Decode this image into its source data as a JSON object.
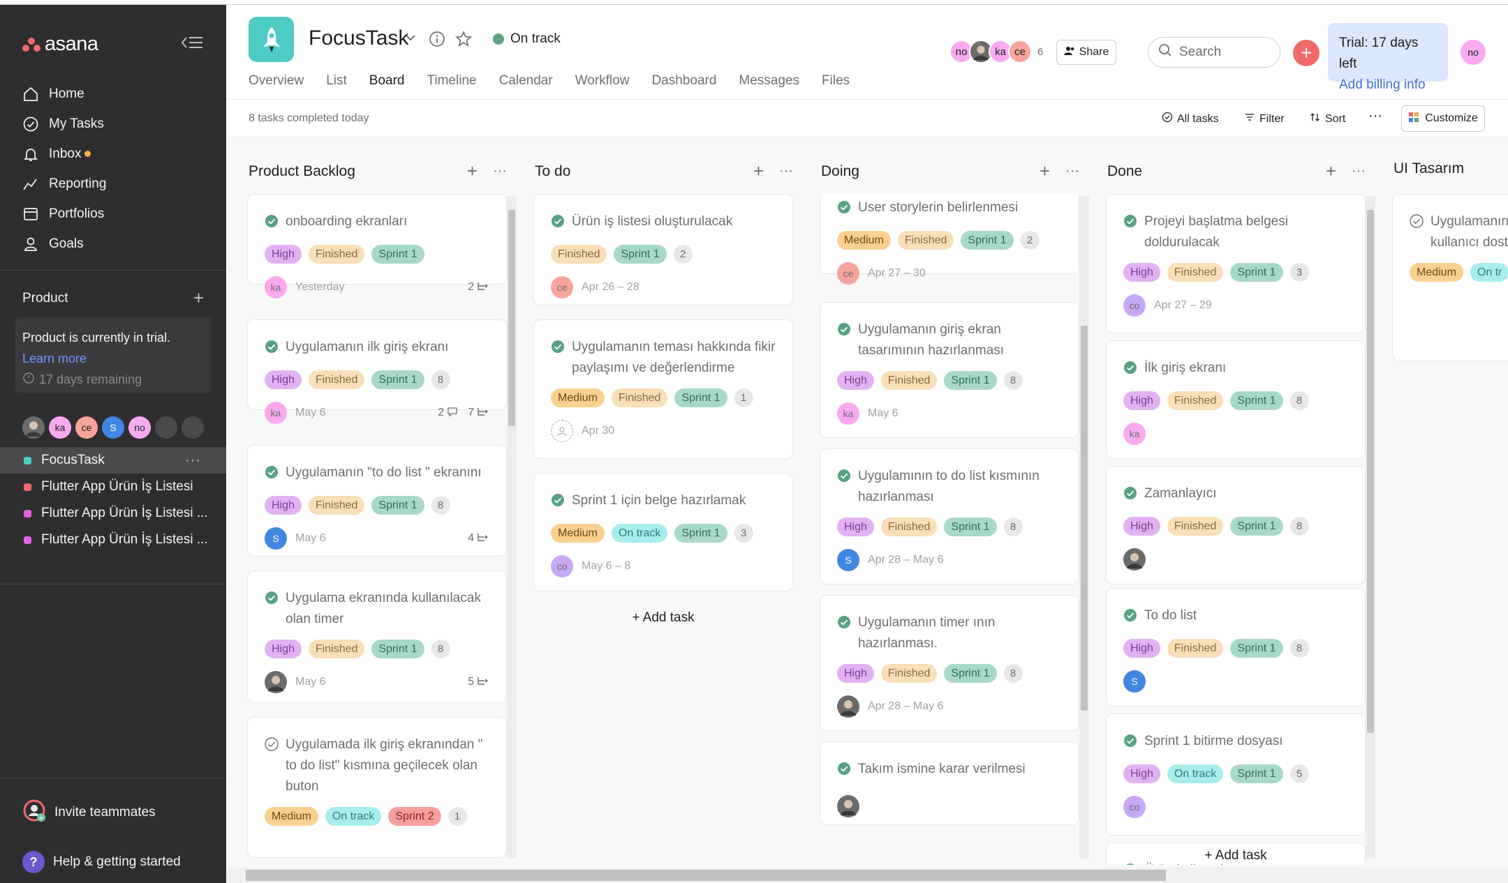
{
  "sidebar": {
    "brand": "asana",
    "nav": [
      {
        "label": "Home",
        "icon": "home-icon"
      },
      {
        "label": "My Tasks",
        "icon": "check-circle-icon"
      },
      {
        "label": "Inbox",
        "icon": "bell-icon"
      },
      {
        "label": "Reporting",
        "icon": "chart-line-icon"
      },
      {
        "label": "Portfolios",
        "icon": "folder-icon"
      },
      {
        "label": "Goals",
        "icon": "person-icon"
      }
    ],
    "team_section": "Product",
    "trial_box": {
      "text": "Product is currently in trial.",
      "link": "Learn more",
      "remaining": "17 days remaining"
    },
    "team_members": [
      "ka",
      "ce",
      "S",
      "no"
    ],
    "projects": [
      {
        "label": "FocusTask",
        "color": "#4ecbc4"
      },
      {
        "label": "Flutter App Ürün İş Listesi",
        "color": "#f06a6a"
      },
      {
        "label": "Flutter App Ürün İş Listesi ...",
        "color": "#e362e3"
      },
      {
        "label": "Flutter App Ürün İş Listesi ...",
        "color": "#e362e3"
      }
    ],
    "invite": "Invite teammates",
    "help": "Help & getting started"
  },
  "header": {
    "title": "FocusTask",
    "status": "On track",
    "tabs": [
      "Overview",
      "List",
      "Board",
      "Timeline",
      "Calendar",
      "Workflow",
      "Dashboard",
      "Messages",
      "Files"
    ],
    "active_tab": "Board",
    "members": [
      "no",
      "ka",
      "ce"
    ],
    "member_count": "6",
    "share": "Share",
    "search_placeholder": "Search",
    "trial": {
      "days": "Trial: 17 days left",
      "billing": "Add billing info"
    },
    "me": "no"
  },
  "toolbar": {
    "completed": "8 tasks completed today",
    "all_tasks": "All tasks",
    "filter": "Filter",
    "sort": "Sort",
    "customize": "Customize"
  },
  "board": {
    "add_task": "+ Add task",
    "columns": [
      {
        "title": "Product Backlog",
        "cards": [
          {
            "title": "onboarding ekranları",
            "tags": [
              "High",
              "Finished",
              "Sprint 1"
            ],
            "assignee": "ka",
            "date": "Yesterday",
            "subtasks": "2"
          },
          {
            "title": "Uygulamanın ilk giriş ekranı",
            "tags": [
              "High",
              "Finished",
              "Sprint 1"
            ],
            "count": "8",
            "assignee": "ka",
            "date": "May 6",
            "comments": "2",
            "subtasks": "7"
          },
          {
            "title": "Uygulamanın \"to do list \" ekranını",
            "tags": [
              "High",
              "Finished",
              "Sprint 1"
            ],
            "count": "8",
            "assignee": "S",
            "date": "May 6",
            "subtasks": "4"
          },
          {
            "title": "Uygulama ekranında kullanılacak olan timer",
            "tags": [
              "High",
              "Finished",
              "Sprint 1"
            ],
            "count": "8",
            "date": "May 6",
            "subtasks": "5"
          },
          {
            "title": "Uygulamada ilk giriş ekranından \" to do list\" kısmına geçilecek olan buton",
            "tags": [
              "Medium",
              "On track",
              "Sprint 2"
            ],
            "count": "1"
          }
        ]
      },
      {
        "title": "To do",
        "cards": [
          {
            "title": "Ürün iş listesi oluşturulacak",
            "tags": [
              "Finished",
              "Sprint 1"
            ],
            "count": "2",
            "assignee": "ce",
            "date": "Apr 26 – 28"
          },
          {
            "title": "Uygulamanın teması hakkında fikir paylaşımı ve değerlendirme",
            "tags": [
              "Medium",
              "Finished",
              "Sprint 1"
            ],
            "count": "1",
            "date": "Apr 30"
          },
          {
            "title": "Sprint 1 için belge hazırlamak",
            "tags": [
              "Medium",
              "On track",
              "Sprint 1"
            ],
            "count": "3",
            "assignee": "co",
            "date": "May 6 – 8"
          }
        ]
      },
      {
        "title": "Doing",
        "cards": [
          {
            "title": "User storylerin belirlenmesi",
            "tags": [
              "Medium",
              "Finished",
              "Sprint 1"
            ],
            "count": "2",
            "assignee": "ce",
            "date": "Apr 27 – 30"
          },
          {
            "title": "Uygulamanın giriş ekran tasarımının hazırlanması",
            "tags": [
              "High",
              "Finished",
              "Sprint 1"
            ],
            "count": "8",
            "assignee": "ka",
            "date": "May 6"
          },
          {
            "title": "Uygulamının to do list kısmının hazırlanması",
            "tags": [
              "High",
              "Finished",
              "Sprint 1"
            ],
            "count": "8",
            "assignee": "S",
            "date": "Apr 28 – May 6"
          },
          {
            "title": "Uygulamanın timer ının hazırlanması.",
            "tags": [
              "High",
              "Finished",
              "Sprint 1"
            ],
            "count": "8",
            "date": "Apr 28 – May 6"
          },
          {
            "title": "Takım ismine karar verilmesi"
          }
        ]
      },
      {
        "title": "Done",
        "cards": [
          {
            "title": "Projeyi başlatma belgesi doldurulacak",
            "tags": [
              "High",
              "Finished",
              "Sprint 1"
            ],
            "count": "3",
            "assignee": "co",
            "date": "Apr 27 – 29"
          },
          {
            "title": "İlk giriş ekranı",
            "tags": [
              "High",
              "Finished",
              "Sprint 1"
            ],
            "count": "8",
            "assignee": "ka"
          },
          {
            "title": "Zamanlayıcı",
            "tags": [
              "High",
              "Finished",
              "Sprint 1"
            ],
            "count": "8"
          },
          {
            "title": "To do list",
            "tags": [
              "High",
              "Finished",
              "Sprint 1"
            ],
            "count": "8",
            "assignee": "S"
          },
          {
            "title": "Sprint 1 bitirme dosyası",
            "tags": [
              "High",
              "On track",
              "Sprint 1"
            ],
            "count": "5",
            "assignee": "co"
          },
          {
            "title": "Ürün iş listesi"
          }
        ]
      },
      {
        "title": "UI Tasarım",
        "cards": [
          {
            "title": "Uygulamanın belirlenmesi ve r kullanıcı dostu u tasarlanması",
            "tags": [
              "Medium",
              "On tr"
            ]
          }
        ]
      }
    ]
  }
}
